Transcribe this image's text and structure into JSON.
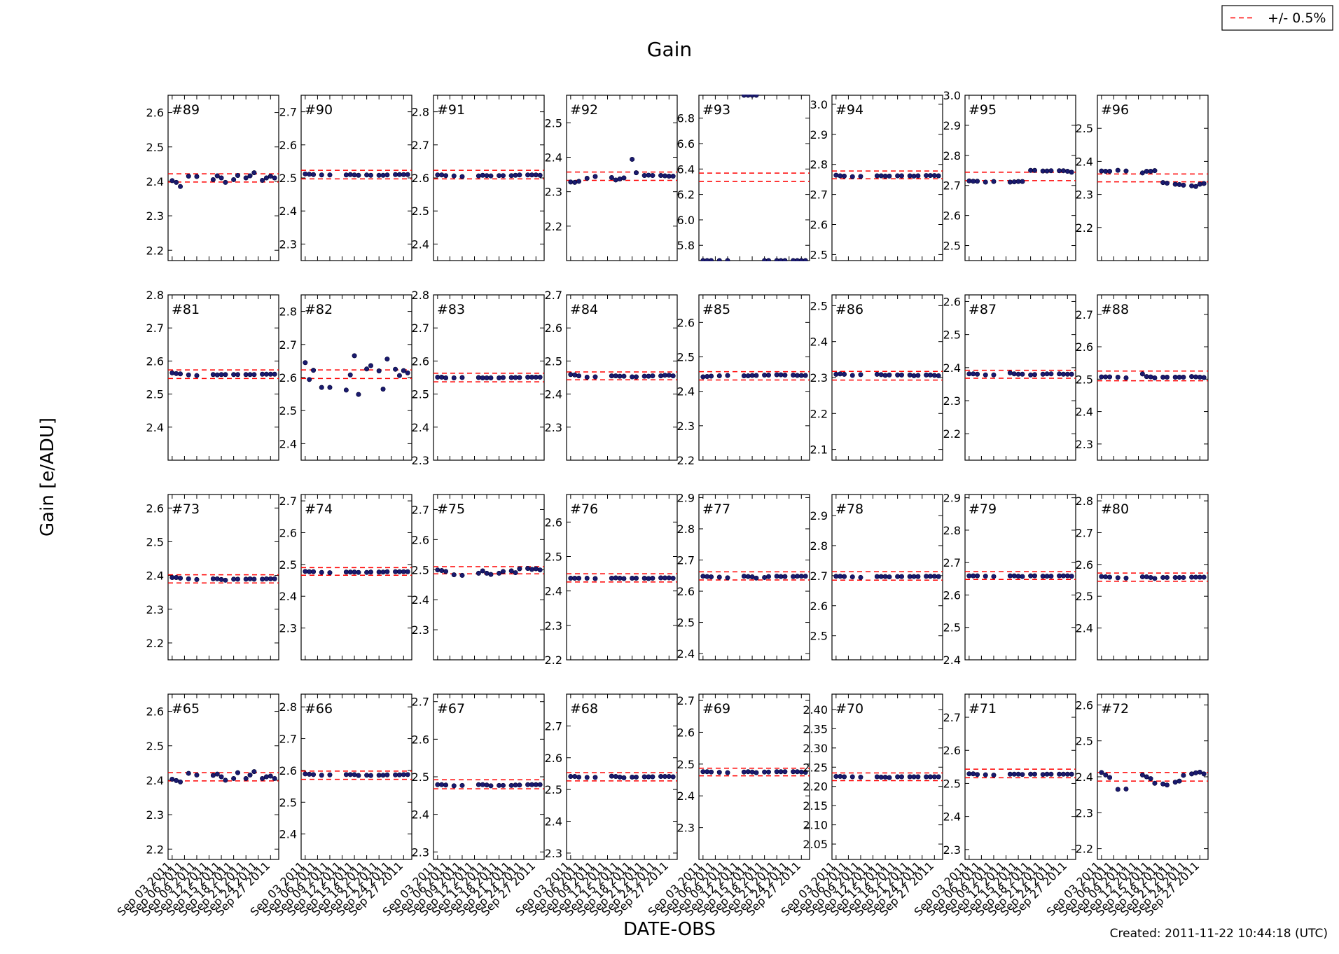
{
  "figure": {
    "title": "Gain",
    "xlabel": "DATE-OBS",
    "ylabel": "Gain [e/ADU]",
    "created": "Created: 2011-11-22 10:44:18 (UTC)",
    "legend": {
      "label": "+/- 0.5%",
      "line_color": "#ff0000",
      "line_style": "dashed",
      "placement": "top-right"
    },
    "point_color": "#1a1a6e",
    "x_tick_labels": [
      "Sep 03 2011",
      "Sep 06 2011",
      "Sep 09 2011",
      "Sep 12 2011",
      "Sep 15 2011",
      "Sep 18 2011",
      "Sep 21 2011",
      "Sep 24 2011",
      "Sep 27 2011"
    ],
    "x_range": [
      "2011-09-02",
      "2011-09-29"
    ],
    "x_tick_dates": [
      "2011-09-03",
      "2011-09-06",
      "2011-09-09",
      "2011-09-12",
      "2011-09-15",
      "2011-09-18",
      "2011-09-21",
      "2011-09-24",
      "2011-09-27"
    ],
    "obs_dates": [
      "2011-09-03",
      "2011-09-04",
      "2011-09-05",
      "2011-09-07",
      "2011-09-09",
      "2011-09-13",
      "2011-09-14",
      "2011-09-15",
      "2011-09-16",
      "2011-09-18",
      "2011-09-19",
      "2011-09-21",
      "2011-09-22",
      "2011-09-23",
      "2011-09-25",
      "2011-09-26",
      "2011-09-27",
      "2011-09-28"
    ],
    "grid": "4x8, shared x axis, no gridlines"
  },
  "chart_data": [
    {
      "type": "scatter",
      "panel": "#89",
      "ylim": [
        2.17,
        2.65
      ],
      "yticks": [
        "2.2",
        "2.3",
        "2.4",
        "2.5",
        "2.6"
      ],
      "band": [
        2.398,
        2.422
      ],
      "values": [
        2.402,
        2.397,
        2.385,
        2.415,
        2.414,
        2.405,
        2.416,
        2.41,
        2.397,
        2.405,
        2.417,
        2.41,
        2.416,
        2.425,
        2.403,
        2.41,
        2.415,
        2.41
      ]
    },
    {
      "type": "scatter",
      "panel": "#90",
      "ylim": [
        2.25,
        2.75
      ],
      "yticks": [
        "2.3",
        "2.4",
        "2.5",
        "2.6",
        "2.7"
      ],
      "band": [
        2.497,
        2.523
      ],
      "values": [
        2.512,
        2.511,
        2.51,
        2.509,
        2.509,
        2.509,
        2.51,
        2.509,
        2.508,
        2.509,
        2.508,
        2.508,
        2.508,
        2.509,
        2.51,
        2.51,
        2.51,
        2.51
      ]
    },
    {
      "type": "scatter",
      "panel": "#91",
      "ylim": [
        2.35,
        2.85
      ],
      "yticks": [
        "2.4",
        "2.5",
        "2.6",
        "2.7",
        "2.8"
      ],
      "band": [
        2.597,
        2.623
      ],
      "values": [
        2.609,
        2.609,
        2.607,
        2.606,
        2.604,
        2.606,
        2.608,
        2.607,
        2.606,
        2.607,
        2.607,
        2.607,
        2.608,
        2.609,
        2.609,
        2.609,
        2.609,
        2.608
      ]
    },
    {
      "type": "scatter",
      "panel": "#92",
      "ylim": [
        2.1,
        2.58
      ],
      "yticks": [
        "2.2",
        "2.3",
        "2.4",
        "2.5"
      ],
      "band": [
        2.333,
        2.357
      ],
      "values": [
        2.328,
        2.327,
        2.33,
        2.339,
        2.344,
        2.341,
        2.334,
        2.337,
        2.34,
        2.394,
        2.355,
        2.347,
        2.348,
        2.347,
        2.347,
        2.346,
        2.345,
        2.345
      ]
    },
    {
      "type": "scatter",
      "panel": "#93",
      "ylim": [
        5.68,
        6.98
      ],
      "yticks": [
        "5.8",
        "6.0",
        "6.2",
        "6.4",
        "6.6",
        "6.8"
      ],
      "band": [
        6.302,
        6.368
      ],
      "values": [
        5.68,
        5.68,
        5.68,
        5.68,
        5.68,
        6.98,
        6.98,
        6.98,
        6.98,
        5.68,
        5.68,
        5.68,
        5.68,
        5.68,
        5.68,
        5.68,
        5.68,
        5.68
      ]
    },
    {
      "type": "scatter",
      "panel": "#94",
      "ylim": [
        2.48,
        3.03
      ],
      "yticks": [
        "2.5",
        "2.6",
        "2.7",
        "2.8",
        "2.9",
        "3.0"
      ],
      "band": [
        2.752,
        2.778
      ],
      "values": [
        2.764,
        2.762,
        2.761,
        2.759,
        2.76,
        2.762,
        2.762,
        2.761,
        2.761,
        2.762,
        2.762,
        2.762,
        2.761,
        2.762,
        2.763,
        2.763,
        2.763,
        2.762
      ]
    },
    {
      "type": "scatter",
      "panel": "#95",
      "ylim": [
        2.45,
        3.0
      ],
      "yticks": [
        "2.5",
        "2.6",
        "2.7",
        "2.8",
        "2.9",
        "3.0"
      ],
      "band": [
        2.716,
        2.744
      ],
      "values": [
        2.715,
        2.714,
        2.714,
        2.711,
        2.713,
        2.711,
        2.712,
        2.713,
        2.713,
        2.75,
        2.75,
        2.748,
        2.748,
        2.749,
        2.749,
        2.749,
        2.747,
        2.744
      ]
    },
    {
      "type": "scatter",
      "panel": "#96",
      "ylim": [
        2.1,
        2.6
      ],
      "yticks": [
        "2.2",
        "2.3",
        "2.4",
        "2.5"
      ],
      "band": [
        2.338,
        2.362
      ],
      "values": [
        2.371,
        2.37,
        2.37,
        2.373,
        2.371,
        2.365,
        2.37,
        2.37,
        2.372,
        2.336,
        2.334,
        2.331,
        2.33,
        2.328,
        2.326,
        2.324,
        2.331,
        2.333
      ]
    },
    {
      "type": "scatter",
      "panel": "#81",
      "ylim": [
        2.3,
        2.8
      ],
      "yticks": [
        "2.4",
        "2.5",
        "2.6",
        "2.7",
        "2.8"
      ],
      "band": [
        2.547,
        2.573
      ],
      "values": [
        2.564,
        2.562,
        2.561,
        2.558,
        2.556,
        2.559,
        2.558,
        2.559,
        2.559,
        2.559,
        2.559,
        2.559,
        2.559,
        2.559,
        2.56,
        2.56,
        2.56,
        2.56
      ]
    },
    {
      "type": "scatter",
      "panel": "#82",
      "ylim": [
        2.35,
        2.85
      ],
      "yticks": [
        "2.4",
        "2.5",
        "2.6",
        "2.7",
        "2.8"
      ],
      "band": [
        2.597,
        2.623
      ],
      "values": [
        2.645,
        2.594,
        2.622,
        2.57,
        2.57,
        2.562,
        2.608,
        2.666,
        2.549,
        2.626,
        2.636,
        2.62,
        2.565,
        2.656,
        2.625,
        2.606,
        2.621,
        2.614
      ]
    },
    {
      "type": "scatter",
      "panel": "#83",
      "ylim": [
        2.3,
        2.8
      ],
      "yticks": [
        "2.3",
        "2.4",
        "2.5",
        "2.6",
        "2.7",
        "2.8"
      ],
      "band": [
        2.537,
        2.563
      ],
      "values": [
        2.551,
        2.551,
        2.549,
        2.549,
        2.55,
        2.55,
        2.549,
        2.549,
        2.549,
        2.549,
        2.55,
        2.55,
        2.55,
        2.55,
        2.551,
        2.551,
        2.551,
        2.551
      ]
    },
    {
      "type": "scatter",
      "panel": "#84",
      "ylim": [
        2.2,
        2.7
      ],
      "yticks": [
        "2.3",
        "2.4",
        "2.5",
        "2.6",
        "2.7"
      ],
      "band": [
        2.443,
        2.467
      ],
      "values": [
        2.459,
        2.458,
        2.455,
        2.451,
        2.452,
        2.455,
        2.455,
        2.454,
        2.454,
        2.452,
        2.452,
        2.454,
        2.454,
        2.455,
        2.455,
        2.457,
        2.457,
        2.455
      ]
    },
    {
      "type": "scatter",
      "panel": "#85",
      "ylim": [
        2.2,
        2.68
      ],
      "yticks": [
        "2.2",
        "2.3",
        "2.4",
        "2.5",
        "2.6"
      ],
      "band": [
        2.433,
        2.457
      ],
      "values": [
        2.442,
        2.443,
        2.444,
        2.445,
        2.446,
        2.445,
        2.445,
        2.446,
        2.446,
        2.447,
        2.447,
        2.448,
        2.448,
        2.447,
        2.447,
        2.446,
        2.446,
        2.446
      ]
    },
    {
      "type": "scatter",
      "panel": "#86",
      "ylim": [
        2.07,
        2.53
      ],
      "yticks": [
        "2.1",
        "2.2",
        "2.3",
        "2.4",
        "2.5"
      ],
      "band": [
        2.293,
        2.317
      ],
      "values": [
        2.309,
        2.31,
        2.309,
        2.306,
        2.308,
        2.309,
        2.308,
        2.306,
        2.307,
        2.307,
        2.307,
        2.307,
        2.305,
        2.306,
        2.307,
        2.307,
        2.306,
        2.305
      ]
    },
    {
      "type": "scatter",
      "panel": "#87",
      "ylim": [
        2.12,
        2.62
      ],
      "yticks": [
        "2.2",
        "2.3",
        "2.4",
        "2.5",
        "2.6"
      ],
      "band": [
        2.368,
        2.392
      ],
      "values": [
        2.381,
        2.381,
        2.38,
        2.378,
        2.378,
        2.384,
        2.381,
        2.38,
        2.38,
        2.378,
        2.379,
        2.38,
        2.381,
        2.381,
        2.381,
        2.38,
        2.38,
        2.38
      ]
    },
    {
      "type": "scatter",
      "panel": "#88",
      "ylim": [
        2.25,
        2.76
      ],
      "yticks": [
        "2.3",
        "2.4",
        "2.5",
        "2.6",
        "2.7"
      ],
      "band": [
        2.495,
        2.525
      ],
      "values": [
        2.507,
        2.507,
        2.507,
        2.506,
        2.504,
        2.516,
        2.508,
        2.507,
        2.504,
        2.506,
        2.506,
        2.506,
        2.506,
        2.506,
        2.508,
        2.507,
        2.506,
        2.505
      ]
    },
    {
      "type": "scatter",
      "panel": "#73",
      "ylim": [
        2.15,
        2.64
      ],
      "yticks": [
        "2.2",
        "2.3",
        "2.4",
        "2.5",
        "2.6"
      ],
      "band": [
        2.378,
        2.402
      ],
      "values": [
        2.394,
        2.394,
        2.392,
        2.39,
        2.388,
        2.39,
        2.39,
        2.388,
        2.386,
        2.389,
        2.389,
        2.389,
        2.39,
        2.389,
        2.389,
        2.39,
        2.39,
        2.39
      ]
    },
    {
      "type": "scatter",
      "panel": "#74",
      "ylim": [
        2.2,
        2.72
      ],
      "yticks": [
        "2.3",
        "2.4",
        "2.5",
        "2.6",
        "2.7"
      ],
      "band": [
        2.466,
        2.49
      ],
      "values": [
        2.478,
        2.477,
        2.477,
        2.475,
        2.474,
        2.476,
        2.476,
        2.476,
        2.475,
        2.475,
        2.476,
        2.476,
        2.476,
        2.477,
        2.477,
        2.477,
        2.477,
        2.477
      ]
    },
    {
      "type": "scatter",
      "panel": "#75",
      "ylim": [
        2.2,
        2.75
      ],
      "yticks": [
        "2.3",
        "2.4",
        "2.5",
        "2.6",
        "2.7"
      ],
      "band": [
        2.486,
        2.51
      ],
      "values": [
        2.499,
        2.497,
        2.494,
        2.483,
        2.481,
        2.488,
        2.496,
        2.488,
        2.484,
        2.488,
        2.494,
        2.496,
        2.49,
        2.503,
        2.504,
        2.501,
        2.503,
        2.499
      ]
    },
    {
      "type": "scatter",
      "panel": "#76",
      "ylim": [
        2.2,
        2.68
      ],
      "yticks": [
        "2.2",
        "2.3",
        "2.4",
        "2.5",
        "2.6"
      ],
      "band": [
        2.426,
        2.45
      ],
      "values": [
        2.437,
        2.437,
        2.437,
        2.437,
        2.436,
        2.437,
        2.438,
        2.437,
        2.436,
        2.437,
        2.437,
        2.437,
        2.436,
        2.437,
        2.438,
        2.438,
        2.438,
        2.437
      ]
    },
    {
      "type": "scatter",
      "panel": "#77",
      "ylim": [
        2.38,
        2.91
      ],
      "yticks": [
        "2.4",
        "2.5",
        "2.6",
        "2.7",
        "2.8",
        "2.9"
      ],
      "band": [
        2.636,
        2.662
      ],
      "values": [
        2.648,
        2.647,
        2.646,
        2.645,
        2.643,
        2.648,
        2.647,
        2.646,
        2.642,
        2.644,
        2.647,
        2.648,
        2.647,
        2.647,
        2.647,
        2.648,
        2.648,
        2.648
      ]
    },
    {
      "type": "scatter",
      "panel": "#78",
      "ylim": [
        2.42,
        2.97
      ],
      "yticks": [
        "2.5",
        "2.6",
        "2.7",
        "2.8",
        "2.9"
      ],
      "band": [
        2.685,
        2.713
      ],
      "values": [
        2.698,
        2.698,
        2.697,
        2.696,
        2.694,
        2.697,
        2.697,
        2.697,
        2.696,
        2.697,
        2.697,
        2.697,
        2.697,
        2.697,
        2.698,
        2.698,
        2.698,
        2.697
      ]
    },
    {
      "type": "scatter",
      "panel": "#79",
      "ylim": [
        2.4,
        2.91
      ],
      "yticks": [
        "2.4",
        "2.5",
        "2.6",
        "2.7",
        "2.8",
        "2.9"
      ],
      "band": [
        2.648,
        2.672
      ],
      "values": [
        2.659,
        2.659,
        2.659,
        2.658,
        2.657,
        2.659,
        2.659,
        2.658,
        2.657,
        2.659,
        2.659,
        2.658,
        2.658,
        2.658,
        2.659,
        2.659,
        2.659,
        2.658
      ]
    },
    {
      "type": "scatter",
      "panel": "#80",
      "ylim": [
        2.3,
        2.82
      ],
      "yticks": [
        "2.4",
        "2.5",
        "2.6",
        "2.7",
        "2.8"
      ],
      "band": [
        2.547,
        2.573
      ],
      "values": [
        2.562,
        2.561,
        2.56,
        2.558,
        2.557,
        2.561,
        2.561,
        2.559,
        2.556,
        2.559,
        2.559,
        2.559,
        2.559,
        2.559,
        2.56,
        2.56,
        2.56,
        2.56
      ]
    },
    {
      "type": "scatter",
      "panel": "#65",
      "ylim": [
        2.17,
        2.65
      ],
      "yticks": [
        "2.2",
        "2.3",
        "2.4",
        "2.5",
        "2.6"
      ],
      "band": [
        2.398,
        2.422
      ],
      "values": [
        2.403,
        2.399,
        2.395,
        2.42,
        2.415,
        2.414,
        2.418,
        2.41,
        2.4,
        2.405,
        2.422,
        2.405,
        2.415,
        2.425,
        2.405,
        2.41,
        2.412,
        2.405
      ]
    },
    {
      "type": "scatter",
      "panel": "#66",
      "ylim": [
        2.32,
        2.84
      ],
      "yticks": [
        "2.4",
        "2.5",
        "2.6",
        "2.7",
        "2.8"
      ],
      "band": [
        2.572,
        2.598
      ],
      "values": [
        2.589,
        2.588,
        2.587,
        2.585,
        2.586,
        2.587,
        2.587,
        2.587,
        2.584,
        2.585,
        2.584,
        2.585,
        2.585,
        2.586,
        2.586,
        2.586,
        2.587,
        2.587
      ]
    },
    {
      "type": "scatter",
      "panel": "#67",
      "ylim": [
        2.28,
        2.72
      ],
      "yticks": [
        "2.3",
        "2.4",
        "2.5",
        "2.6",
        "2.7"
      ],
      "band": [
        2.468,
        2.492
      ],
      "values": [
        2.479,
        2.479,
        2.478,
        2.476,
        2.477,
        2.479,
        2.479,
        2.478,
        2.476,
        2.477,
        2.477,
        2.477,
        2.478,
        2.478,
        2.479,
        2.479,
        2.479,
        2.479
      ]
    },
    {
      "type": "scatter",
      "panel": "#68",
      "ylim": [
        2.28,
        2.8
      ],
      "yticks": [
        "2.3",
        "2.4",
        "2.5",
        "2.6",
        "2.7"
      ],
      "band": [
        2.527,
        2.553
      ],
      "values": [
        2.541,
        2.541,
        2.539,
        2.538,
        2.538,
        2.542,
        2.541,
        2.539,
        2.537,
        2.539,
        2.539,
        2.54,
        2.54,
        2.54,
        2.541,
        2.541,
        2.541,
        2.54
      ]
    },
    {
      "type": "scatter",
      "panel": "#69",
      "ylim": [
        2.2,
        2.72
      ],
      "yticks": [
        "2.3",
        "2.4",
        "2.5",
        "2.6",
        "2.7"
      ],
      "band": [
        2.463,
        2.487
      ],
      "values": [
        2.476,
        2.476,
        2.475,
        2.474,
        2.473,
        2.475,
        2.476,
        2.475,
        2.473,
        2.475,
        2.475,
        2.476,
        2.476,
        2.476,
        2.476,
        2.476,
        2.475,
        2.474
      ]
    },
    {
      "type": "scatter",
      "panel": "#70",
      "ylim": [
        2.01,
        2.44
      ],
      "yticks": [
        "2.05",
        "2.10",
        "2.15",
        "2.20",
        "2.25",
        "2.30",
        "2.35",
        "2.40"
      ],
      "band": [
        2.215,
        2.235
      ],
      "values": [
        2.226,
        2.226,
        2.225,
        2.225,
        2.224,
        2.225,
        2.224,
        2.224,
        2.223,
        2.225,
        2.225,
        2.225,
        2.225,
        2.225,
        2.225,
        2.225,
        2.225,
        2.225
      ]
    },
    {
      "type": "scatter",
      "panel": "#71",
      "ylim": [
        2.27,
        2.77
      ],
      "yticks": [
        "2.3",
        "2.4",
        "2.5",
        "2.6",
        "2.7"
      ],
      "band": [
        2.517,
        2.543
      ],
      "values": [
        2.529,
        2.529,
        2.527,
        2.526,
        2.525,
        2.528,
        2.528,
        2.528,
        2.527,
        2.528,
        2.528,
        2.527,
        2.528,
        2.528,
        2.528,
        2.528,
        2.528,
        2.528
      ]
    },
    {
      "type": "scatter",
      "panel": "#72",
      "ylim": [
        2.17,
        2.63
      ],
      "yticks": [
        "2.2",
        "2.3",
        "2.4",
        "2.5",
        "2.6"
      ],
      "band": [
        2.388,
        2.412
      ],
      "values": [
        2.412,
        2.405,
        2.398,
        2.365,
        2.366,
        2.405,
        2.4,
        2.395,
        2.382,
        2.38,
        2.377,
        2.385,
        2.388,
        2.404,
        2.408,
        2.411,
        2.413,
        2.408
      ]
    }
  ]
}
